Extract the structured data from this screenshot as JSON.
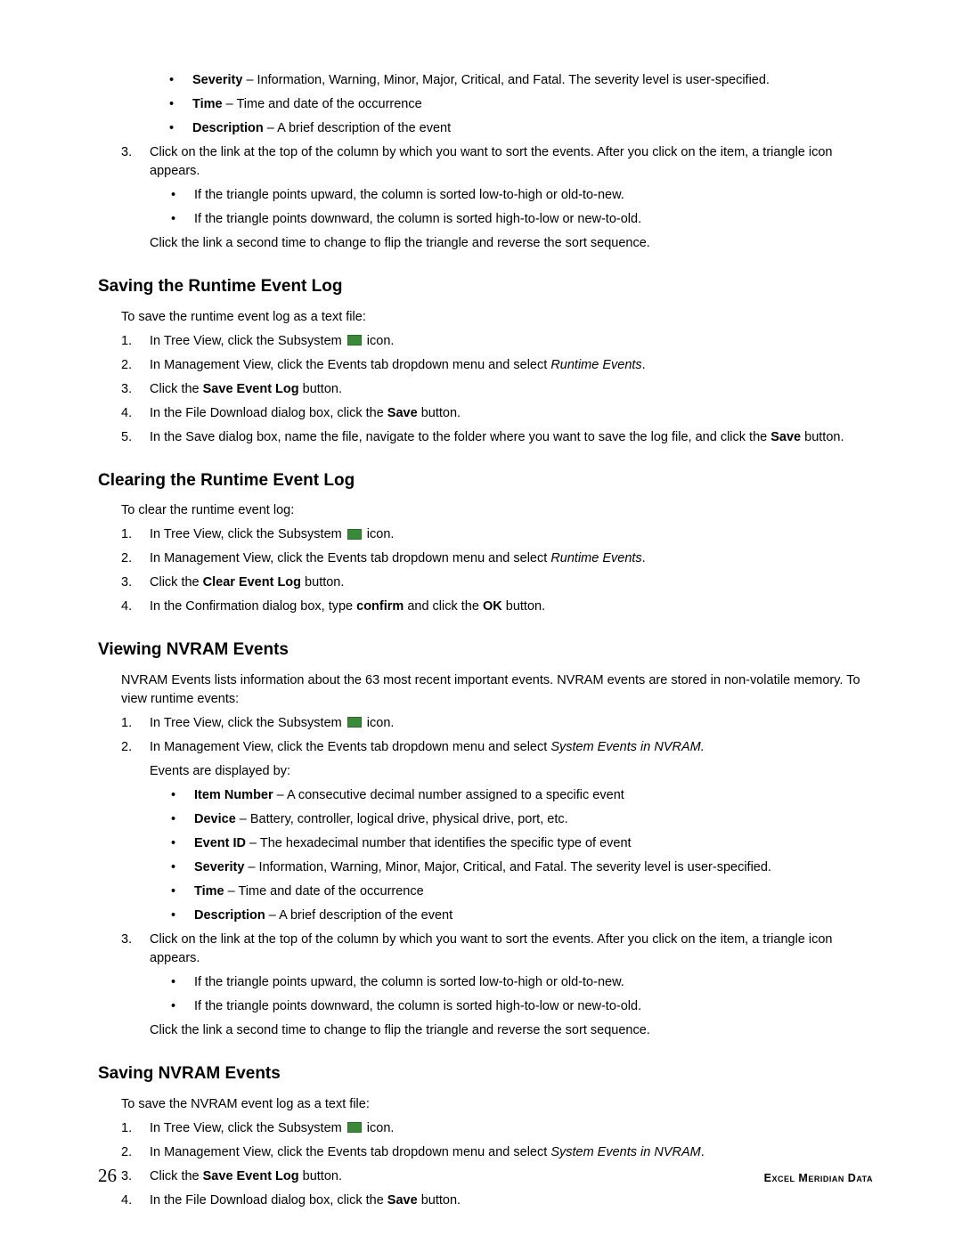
{
  "top_bullets": [
    {
      "term": "Severity",
      "desc": " – Information, Warning, Minor, Major, Critical, and Fatal. The severity level is user-specified."
    },
    {
      "term": "Time",
      "desc": " – Time and date of the occurrence"
    },
    {
      "term": "Description",
      "desc": " – A brief description of the event"
    }
  ],
  "step3_lead": "Click on the link at the top of the column by which you want to sort the events. After you click on the item, a triangle icon appears.",
  "step3_sub": [
    "If the triangle points upward, the column is sorted low-to-high or old-to-new.",
    "If the triangle points downward, the column is sorted high-to-low or new-to-old."
  ],
  "step3_after": "Click the link a second time to change to flip the triangle and reverse the sort sequence.",
  "h1": "Saving the Runtime Event Log",
  "s1_intro": "To save the runtime event log as a text file:",
  "s1_steps": {
    "1_pre": "In Tree View, click the Subsystem ",
    "1_post": " icon.",
    "2_pre": "In Management View, click the Events tab dropdown menu and select ",
    "2_em": "Runtime Events",
    "2_post": ".",
    "3_pre": "Click the ",
    "3_b": "Save Event Log",
    "3_post": " button.",
    "4_pre": "In the File Download dialog box, click the ",
    "4_b": "Save",
    "4_post": " button.",
    "5_pre": "In the Save dialog box, name the file, navigate to the folder where you want to save the log file, and click the ",
    "5_b": "Save",
    "5_post": " button."
  },
  "h2": "Clearing the Runtime Event Log",
  "s2_intro": "To clear the runtime event log:",
  "s2_steps": {
    "1_pre": "In Tree View, click the Subsystem ",
    "1_post": " icon.",
    "2_pre": "In Management View, click the Events tab dropdown menu and select ",
    "2_em": "Runtime Events",
    "2_post": ".",
    "3_pre": "Click the ",
    "3_b": "Clear Event Log",
    "3_post": " button.",
    "4_pre": "In the Confirmation dialog box, type ",
    "4_b1": "confirm",
    "4_mid": " and click the ",
    "4_b2": "OK",
    "4_post": " button."
  },
  "h3": "Viewing NVRAM Events",
  "s3_intro": "NVRAM Events lists information about the 63 most recent important events. NVRAM events are stored in non-volatile memory. To view runtime events:",
  "s3_steps": {
    "1_pre": "In Tree View, click the Subsystem ",
    "1_post": " icon.",
    "2_pre": "In Management View, click the Events tab dropdown menu and select ",
    "2_em": "System Events in NVRAM.",
    "2_note": "Events are displayed by:"
  },
  "s3_bullets": [
    {
      "term": "Item Number",
      "desc": " – A consecutive decimal number assigned to a specific event"
    },
    {
      "term": "Device",
      "desc": " – Battery, controller, logical drive, physical drive, port, etc."
    },
    {
      "term": "Event ID",
      "desc": " – The hexadecimal number that identifies the specific type of event"
    },
    {
      "term": "Severity",
      "desc": " – Information, Warning, Minor, Major, Critical, and Fatal. The severity level is user-specified."
    },
    {
      "term": "Time",
      "desc": " – Time and date of the occurrence"
    },
    {
      "term": "Description",
      "desc": " – A brief description of the event"
    }
  ],
  "h4": "Saving NVRAM Events",
  "s4_intro": "To save the NVRAM event log as a text file:",
  "s4_steps": {
    "1_pre": "In Tree View, click the Subsystem ",
    "1_post": " icon.",
    "2_pre": "In Management View, click the Events tab dropdown menu and select ",
    "2_em": "System Events in NVRAM",
    "2_post": ".",
    "3_pre": "Click the ",
    "3_b": "Save Event Log",
    "3_post": " button.",
    "4_pre": "In the File Download dialog box, click the ",
    "4_b": "Save",
    "4_post": " button."
  },
  "page_number": "26",
  "footer_brand": "Excel Meridian Data",
  "num": {
    "1": "1.",
    "2": "2.",
    "3": "3.",
    "4": "4.",
    "5": "5."
  }
}
